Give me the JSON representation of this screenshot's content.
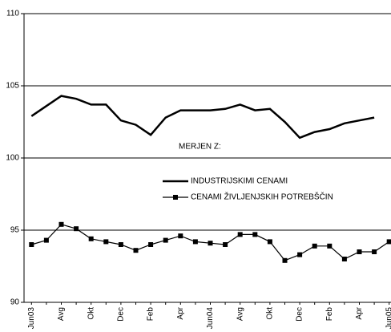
{
  "chart_data": {
    "type": "line",
    "categories": [
      "Jun03",
      null,
      "Avg",
      null,
      "Okt",
      null,
      "Dec",
      null,
      "Feb",
      null,
      "Apr",
      null,
      "Jun04",
      null,
      "Avg",
      null,
      "Okt",
      null,
      "Dec",
      null,
      "Feb",
      null,
      "Apr",
      null,
      "Jun05"
    ],
    "legend_title": "MERJEN Z:",
    "series": [
      {
        "name": "INDUSTRIJSKIMI CENAMI",
        "color": "#000000",
        "marker": "none",
        "values": [
          102.9,
          103.6,
          104.3,
          104.1,
          103.7,
          103.7,
          102.6,
          102.3,
          101.6,
          102.8,
          103.3,
          103.3,
          103.3,
          103.4,
          103.7,
          103.3,
          103.4,
          102.5,
          101.4,
          101.8,
          102.0,
          102.4,
          102.6,
          102.8,
          null
        ]
      },
      {
        "name": "CENAMI ŽIVLJENJSKIH POTREBŠČIN",
        "color": "#000000",
        "marker": "square",
        "values": [
          94.0,
          94.3,
          95.4,
          95.1,
          94.4,
          94.2,
          94.0,
          93.6,
          94.0,
          94.3,
          94.6,
          94.2,
          94.1,
          94.0,
          94.7,
          94.7,
          94.2,
          92.9,
          93.3,
          93.9,
          93.9,
          93.0,
          93.5,
          93.5,
          94.2
        ]
      }
    ],
    "ylim": [
      90,
      110
    ],
    "yticks": [
      90,
      95,
      100,
      105,
      110
    ],
    "grid": true
  }
}
